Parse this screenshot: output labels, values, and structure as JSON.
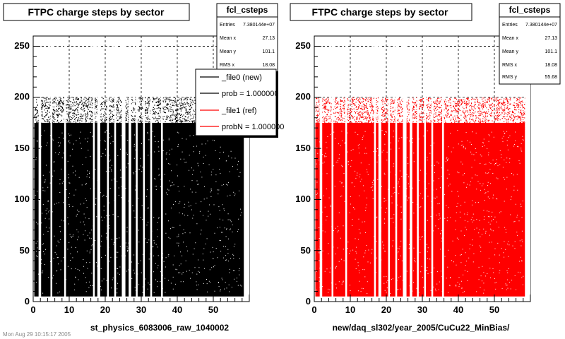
{
  "footer_text": "Mon Aug 29 10:15:17 2005",
  "chart_data": [
    {
      "type": "scatter",
      "title": "FTPC charge steps by sector",
      "xlabel": "st_physics_6083006_raw_1040002",
      "ylabel": "",
      "xlim": [
        0,
        60
      ],
      "ylim": [
        0,
        260
      ],
      "xticks": [
        "0",
        "10",
        "20",
        "30",
        "40",
        "50"
      ],
      "yticks": [
        "0",
        "50",
        "100",
        "150",
        "200",
        "250"
      ],
      "grid": true,
      "marker_color": "#000000",
      "y_band": [
        5,
        200
      ],
      "gap_x_ranges": [
        [
          1.5,
          2.2
        ],
        [
          4.8,
          5.3
        ],
        [
          8.6,
          9.1
        ],
        [
          16.6,
          17.1
        ],
        [
          17.8,
          18.6
        ],
        [
          20.5,
          21.0
        ],
        [
          22.5,
          23.0
        ],
        [
          24.6,
          25.6
        ],
        [
          26.5,
          27.2
        ],
        [
          28.5,
          29.0
        ],
        [
          30.5,
          31.0
        ],
        [
          32.5,
          33.0
        ],
        [
          35.5,
          36.0
        ],
        [
          58.5,
          60.0
        ]
      ],
      "stats": {
        "name": "fcl_csteps",
        "rows": [
          {
            "label": "Entries",
            "value": "7.380144e+07"
          },
          {
            "label": "Mean x",
            "value": "27.13"
          },
          {
            "label": "Mean y",
            "value": "101.1"
          },
          {
            "label": "RMS x",
            "value": "18.08"
          }
        ]
      },
      "legend": {
        "placement": "top-right",
        "entries": [
          {
            "label": "_file0 (new)",
            "color": "#000000"
          },
          {
            "label": "prob = 1.000000",
            "color": "#000000"
          },
          {
            "label": "_file1 (ref)",
            "color": "#ff0000"
          },
          {
            "label": "probN = 1.000000",
            "color": "#ff0000"
          }
        ]
      }
    },
    {
      "type": "scatter",
      "title": "FTPC charge steps by sector",
      "xlabel": "new/daq_sl302/year_2005/CuCu22_MinBias/",
      "ylabel": "",
      "xlim": [
        0,
        60
      ],
      "ylim": [
        0,
        260
      ],
      "xticks": [
        "0",
        "10",
        "20",
        "30",
        "40",
        "50"
      ],
      "yticks": [
        "0",
        "50",
        "100",
        "150",
        "200",
        "250"
      ],
      "grid": true,
      "marker_color": "#ff0000",
      "y_band": [
        5,
        200
      ],
      "gap_x_ranges": [
        [
          1.5,
          2.2
        ],
        [
          4.8,
          5.3
        ],
        [
          8.6,
          9.1
        ],
        [
          16.6,
          17.1
        ],
        [
          17.8,
          18.6
        ],
        [
          20.5,
          21.0
        ],
        [
          22.5,
          23.0
        ],
        [
          24.6,
          25.6
        ],
        [
          26.5,
          27.2
        ],
        [
          28.5,
          29.0
        ],
        [
          30.5,
          31.0
        ],
        [
          32.5,
          33.0
        ],
        [
          35.5,
          36.0
        ],
        [
          58.5,
          60.0
        ]
      ],
      "stats": {
        "name": "fcl_csteps",
        "rows": [
          {
            "label": "Entries",
            "value": "7.380144e+07"
          },
          {
            "label": "Mean x",
            "value": "27.13"
          },
          {
            "label": "Mean y",
            "value": "101.1"
          },
          {
            "label": "RMS x",
            "value": "18.08"
          },
          {
            "label": "RMS y",
            "value": "55.68"
          }
        ]
      }
    }
  ]
}
